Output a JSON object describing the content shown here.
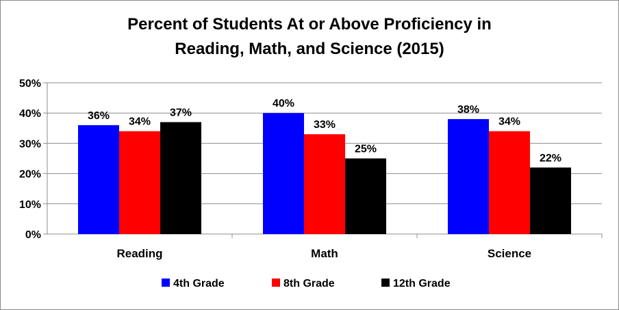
{
  "chart_data": {
    "type": "bar",
    "title": "Percent of Students At or Above Proficiency in Reading, Math, and Science (2015)",
    "title_lines": [
      "Percent of Students At or Above Proficiency in",
      "Reading, Math, and Science (2015)"
    ],
    "categories": [
      "Reading",
      "Math",
      "Science"
    ],
    "series": [
      {
        "name": "4th Grade",
        "values": [
          36,
          40,
          38
        ],
        "color": "#0000FF"
      },
      {
        "name": "8th Grade",
        "values": [
          34,
          33,
          34
        ],
        "color": "#FF0000"
      },
      {
        "name": "12th Grade",
        "values": [
          37,
          25,
          22
        ],
        "color": "#000000"
      }
    ],
    "data_labels": [
      [
        "36%",
        "40%",
        "38%"
      ],
      [
        "34%",
        "33%",
        "34%"
      ],
      [
        "37%",
        "25%",
        "22%"
      ]
    ],
    "ylim": [
      0,
      50
    ],
    "yticks": [
      0,
      10,
      20,
      30,
      40,
      50
    ],
    "ytick_labels": [
      "0%",
      "10%",
      "20%",
      "30%",
      "40%",
      "50%"
    ],
    "grid": true,
    "legend_position": "bottom"
  }
}
